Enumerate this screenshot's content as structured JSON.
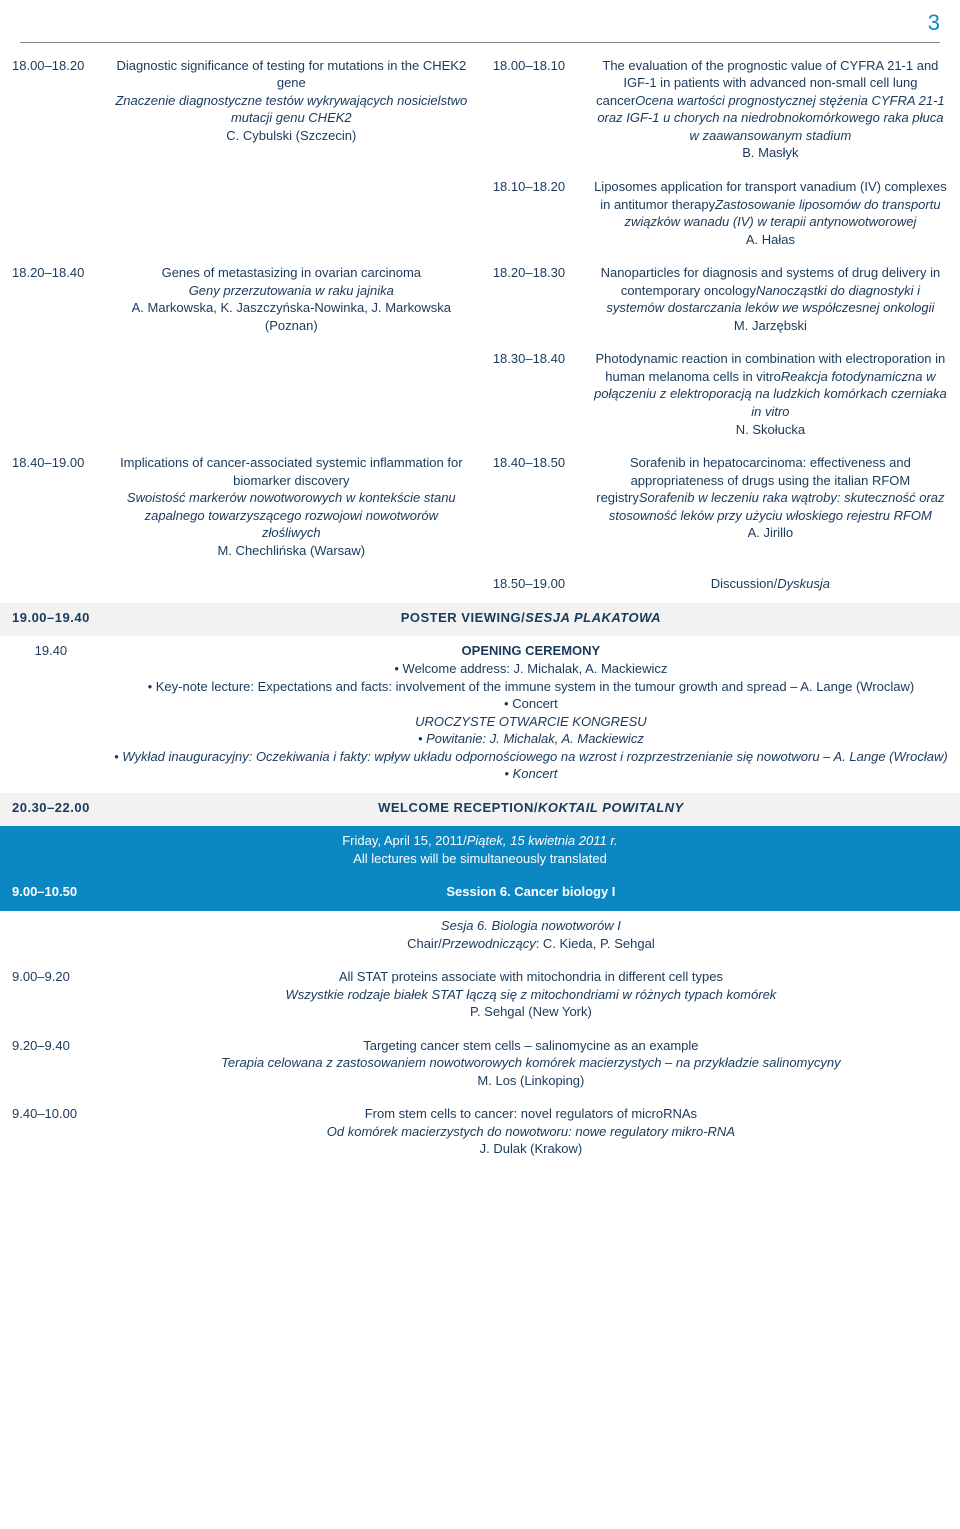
{
  "page_number": "3",
  "colors": {
    "brand_blue": "#0b88c4",
    "text": "#1a3a5c",
    "band_grey": "#f2f2f2"
  },
  "rows_dual": [
    {
      "l_time": "18.00–18.20",
      "l_en": "Diagnostic significance of testing for mutations in the CHEK2 gene",
      "l_it": "Znaczenie diagnostyczne testów wykrywających nosicielstwo mutacji genu CHEK2",
      "l_auth": "C. Cybulski (Szczecin)",
      "r_time": "18.00–18.10",
      "r_en": "The evaluation of the prognostic value of CYFRA 21-1 and IGF-1 in patients with advanced non-small cell lung cancer",
      "r_it": "Ocena wartości prognostycznej stężenia CYFRA 21-1 oraz IGF-1 u chorych na niedrobnokomórkowego raka płuca w zaawansowanym stadium",
      "r_auth": "B. Masłyk"
    },
    {
      "l_time": "",
      "l_en": "",
      "l_it": "",
      "l_auth": "",
      "r_time": "18.10–18.20",
      "r_en": "Liposomes application for transport vanadium (IV) complexes in antitumor therapy",
      "r_it": "Zastosowanie liposomów do transportu związków wanadu (IV) w terapii antynowotworowej",
      "r_auth": "A. Hałas"
    },
    {
      "l_time": "18.20–18.40",
      "l_en": "Genes of metastasizing in ovarian carcinoma",
      "l_it": "Geny przerzutowania w raku jajnika",
      "l_auth": "A. Markowska, K. Jaszczyńska-Nowinka, J. Markowska (Poznan)",
      "r_time": "18.20–18.30",
      "r_en": "Nanoparticles for diagnosis and systems of drug delivery in contemporary oncology",
      "r_it": "Nanocząstki do diagnostyki i systemów dostarczania leków we współczesnej onkologii",
      "r_auth": "M. Jarzębski"
    },
    {
      "l_time": "",
      "l_en": "",
      "l_it": "",
      "l_auth": "",
      "r_time": "18.30–18.40",
      "r_en": "Photodynamic reaction in combination with electroporation in human melanoma cells in vitro",
      "r_it": "Reakcja fotodynamiczna w połączeniu z elektroporacją na ludzkich komórkach czerniaka in vitro",
      "r_auth": "N. Skołucka"
    },
    {
      "l_time": "18.40–19.00",
      "l_en": "Implications of cancer-associated systemic inflammation for biomarker discovery",
      "l_it": "Swoistość markerów nowotworowych w kontekście stanu zapalnego towarzyszącego rozwojowi nowotworów złośliwych",
      "l_auth": "M. Chechlińska (Warsaw)",
      "r_time": "18.40–18.50",
      "r_en": "Sorafenib in hepatocarcinoma: effectiveness and appropriateness of drugs using the italian RFOM registry",
      "r_it": "Sorafenib w leczeniu raka wątroby: skuteczność oraz stosowność leków przy użyciu włoskiego rejestru RFOM",
      "r_auth": "A. Jirillo"
    },
    {
      "l_time": "",
      "l_en": "",
      "l_it": "",
      "l_auth": "",
      "r_time": "18.50–19.00",
      "r_en": "Discussion/",
      "r_it": "Dyskusja",
      "r_auth": ""
    }
  ],
  "poster": {
    "time": "19.00–19.40",
    "en": "POSTER VIEWING/",
    "it": "SESJA PLAKATOWA"
  },
  "ceremony": {
    "time": "19.40",
    "title": "OPENING CEREMONY",
    "lines": [
      "Welcome address: J. Michalak, A. Mackiewicz",
      "Key-note lecture: Expectations and facts: involvement of the immune system in the tumour growth and spread – A. Lange (Wroclaw)",
      "Concert"
    ],
    "title_it": "UROCZYSTE OTWARCIE KONGRESU",
    "lines_it": [
      "Powitanie: J. Michalak, A. Mackiewicz",
      "Wykład inauguracyjny: Oczekiwania i fakty: wpływ układu odpornościowego na wzrost i rozprzestrzenianie się nowotworu – A. Lange (Wrocław)",
      "Koncert"
    ]
  },
  "reception": {
    "time": "20.30–22.00",
    "en": "WELCOME RECEPTION/",
    "it": "KOKTAIL POWITALNY"
  },
  "day_band": {
    "line1_en": "Friday, April 15, 2011/",
    "line1_it": "Piątek, 15 kwietnia 2011 r.",
    "line2": "All lectures will be simultaneously translated"
  },
  "session6": {
    "time": "9.00–10.50",
    "title_en": "Session 6. Cancer biology I",
    "title_it": "Sesja 6. Biologia nowotworów I",
    "chair_label": "Chair/",
    "chair_label_it": "Przewodniczący",
    "chair_names": ": C. Kieda, P. Sehgal"
  },
  "rows_single": [
    {
      "time": "9.00–9.20",
      "en": "All STAT proteins associate with mitochondria in different cell types",
      "it": "Wszystkie rodzaje białek STAT łączą się z mitochondriami w różnych typach komórek",
      "auth": "P. Sehgal (New York)"
    },
    {
      "time": "9.20–9.40",
      "en": "Targeting cancer stem cells – salinomycine as an example",
      "it": "Terapia celowana z zastosowaniem nowotworowych komórek macierzystych – na przykładzie salinomycyny",
      "auth": "M. Los (Linkoping)"
    },
    {
      "time": "9.40–10.00",
      "en": "From stem cells to cancer: novel regulators of microRNAs",
      "it": "Od komórek macierzystych do nowotworu: nowe regulatory mikro-RNA",
      "auth": "J. Dulak (Krakow)"
    }
  ]
}
